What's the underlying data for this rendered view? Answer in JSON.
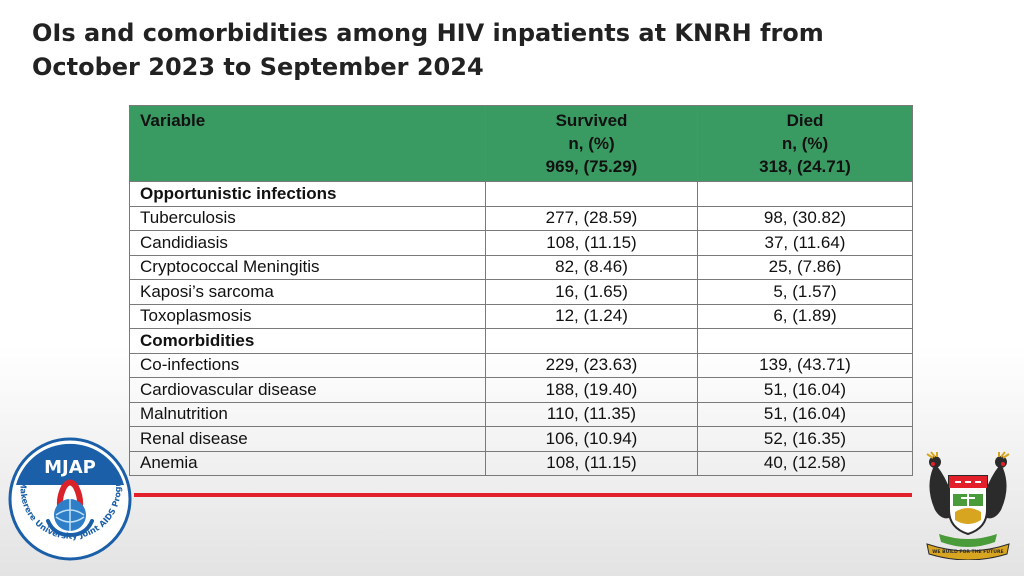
{
  "title": {
    "line1": "OIs and comorbidities among HIV inpatients at KNRH from",
    "line2": "October 2023 to September 2024"
  },
  "table": {
    "headers": {
      "variable": "Variable",
      "survived": [
        "Survived",
        "n, (%)",
        "969, (75.29)"
      ],
      "died": [
        "Died",
        "n, (%)",
        "318, (24.71)"
      ]
    },
    "sections": [
      {
        "label": "Opportunistic infections",
        "rows": [
          {
            "name": "Tuberculosis",
            "survived": "277, (28.59)",
            "died": "98, (30.82)"
          },
          {
            "name": "Candidiasis",
            "survived": "108, (11.15)",
            "died": "37, (11.64)"
          },
          {
            "name": "Cryptococcal Meningitis",
            "survived": "82, (8.46)",
            "died": "25, (7.86)"
          },
          {
            "name": "Kaposi’s sarcoma",
            "survived": "16, (1.65)",
            "died": "5, (1.57)"
          },
          {
            "name": "Toxoplasmosis",
            "survived": "12, (1.24)",
            "died": "6, (1.89)"
          }
        ]
      },
      {
        "label": "Comorbidities",
        "rows": [
          {
            "name": "Co-infections",
            "survived": "229, (23.63)",
            "died": "139, (43.71)"
          },
          {
            "name": "Cardiovascular disease",
            "survived": "188, (19.40)",
            "died": "51, (16.04)"
          },
          {
            "name": "Malnutrition",
            "survived": "110, (11.35)",
            "died": "51, (16.04)"
          },
          {
            "name": "Renal disease",
            "survived": "106, (10.94)",
            "died": "52, (16.35)"
          },
          {
            "name": "Anemia",
            "survived": "108, (11.15)",
            "died": "40, (12.58)"
          }
        ]
      }
    ]
  },
  "logos": {
    "mjap": {
      "text": "MJAP",
      "ring_text": "Makerere University Joint AIDS Program"
    },
    "crest": {
      "motto": "WE BUILD FOR THE FUTURE"
    }
  },
  "colors": {
    "header_green": "#3a9b62",
    "rule_red": "#e3202a",
    "mjap_blue": "#1a5fa8"
  }
}
